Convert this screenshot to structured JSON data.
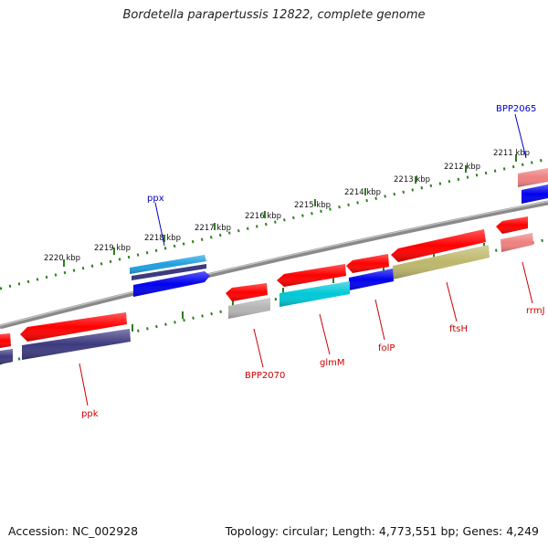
{
  "title": "Bordetella parapertussis 12822, complete genome",
  "accession": "Accession: NC_002928",
  "topology": "Topology: circular; Length: 4,773,551 bp; Genes: 4,249",
  "colors": {
    "backbone": "#8a8a8a",
    "tick": "#2e7d1e",
    "label_red": "#cc0000",
    "label_blue": "#0000cc",
    "red": "#ff0000",
    "blue": "#0000ee",
    "cyan": "#00c8d8",
    "light_blue": "#1ea0e0",
    "navy": "#3d3a80",
    "grey": "#b4b4b4",
    "olive": "#bdb76b",
    "pink": "#ee8080"
  },
  "scale_labels": [
    "2211 kbp",
    "2212 kbp",
    "2213 kbp",
    "2214 kbp",
    "2215 kbp",
    "2216 kbp",
    "2217 kbp",
    "2218 kbp",
    "2219 kbp",
    "2220 kbp"
  ],
  "gene_labels": {
    "BPP2065": "BPP2065",
    "ppx": "ppx",
    "rrmJ": "rrmJ",
    "ftsH": "ftsH",
    "folP": "folP",
    "glmM": "glmM",
    "BPP2070": "BPP2070",
    "ppk": "ppk"
  }
}
